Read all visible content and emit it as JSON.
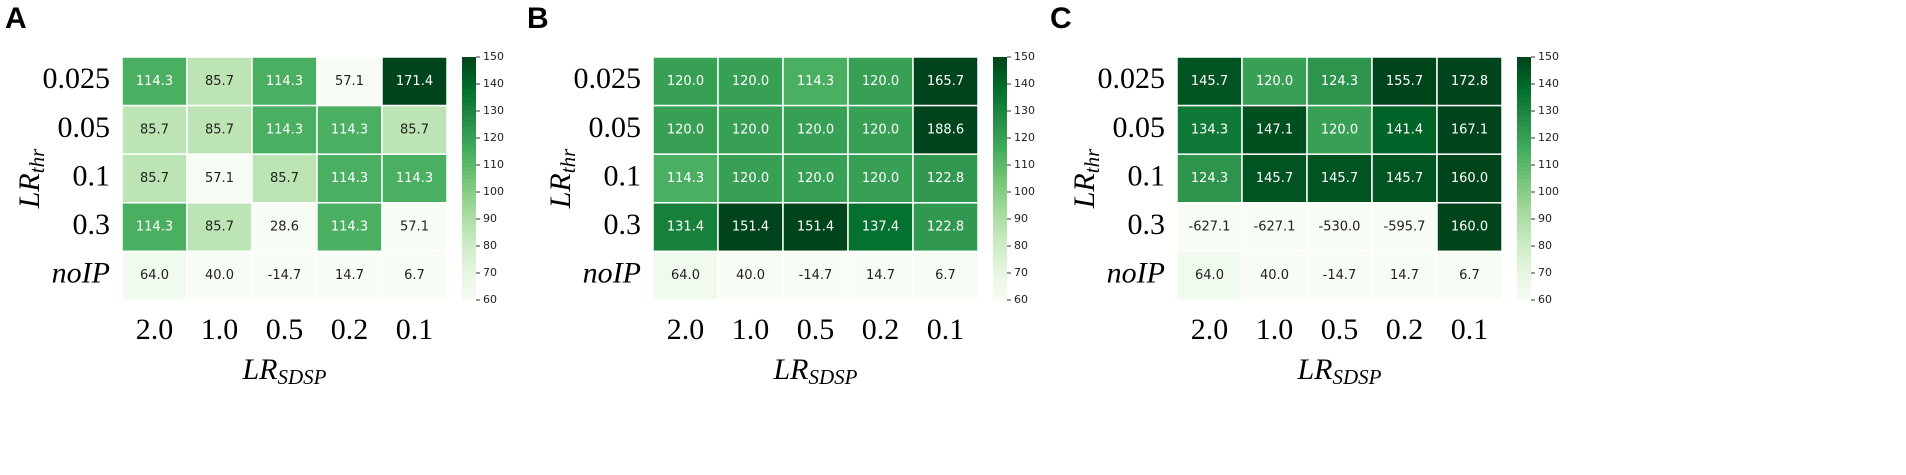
{
  "chart_data": [
    {
      "type": "heatmap",
      "panel": "A",
      "x": [
        "2.0",
        "1.0",
        "0.5",
        "0.2",
        "0.1"
      ],
      "y": [
        "0.025",
        "0.05",
        "0.1",
        "0.3",
        "noIP"
      ],
      "xlabel": "LR",
      "xlabel_sub": "SDSP",
      "ylabel": "LR",
      "ylabel_sub": "thr",
      "values": [
        [
          114.3,
          85.7,
          114.3,
          57.1,
          171.4
        ],
        [
          85.7,
          85.7,
          114.3,
          114.3,
          85.7
        ],
        [
          85.7,
          57.1,
          85.7,
          114.3,
          114.3
        ],
        [
          114.3,
          85.7,
          28.6,
          114.3,
          57.1
        ],
        [
          64.0,
          40.0,
          -14.7,
          14.7,
          6.7
        ]
      ],
      "value_labels": [
        [
          "114.3",
          "85.7",
          "114.3",
          "57.1",
          "171.4"
        ],
        [
          "85.7",
          "85.7",
          "114.3",
          "114.3",
          "85.7"
        ],
        [
          "85.7",
          "57.1",
          "85.7",
          "114.3",
          "114.3"
        ],
        [
          "114.3",
          "85.7",
          "28.6",
          "114.3",
          "57.1"
        ],
        [
          "64.0",
          "40.0",
          "-14.7",
          "14.7",
          "6.7"
        ]
      ],
      "colormap": "Greens",
      "clim": [
        60,
        150
      ],
      "cticks": [
        60,
        70,
        80,
        90,
        100,
        110,
        120,
        130,
        140,
        150
      ]
    },
    {
      "type": "heatmap",
      "panel": "B",
      "x": [
        "2.0",
        "1.0",
        "0.5",
        "0.2",
        "0.1"
      ],
      "y": [
        "0.025",
        "0.05",
        "0.1",
        "0.3",
        "noIP"
      ],
      "xlabel": "LR",
      "xlabel_sub": "SDSP",
      "ylabel": "LR",
      "ylabel_sub": "thr",
      "values": [
        [
          120.0,
          120.0,
          114.3,
          120.0,
          165.7
        ],
        [
          120.0,
          120.0,
          120.0,
          120.0,
          188.6
        ],
        [
          114.3,
          120.0,
          120.0,
          120.0,
          122.8
        ],
        [
          131.4,
          151.4,
          151.4,
          137.4,
          122.8
        ],
        [
          64.0,
          40.0,
          -14.7,
          14.7,
          6.7
        ]
      ],
      "value_labels": [
        [
          "120.0",
          "120.0",
          "114.3",
          "120.0",
          "165.7"
        ],
        [
          "120.0",
          "120.0",
          "120.0",
          "120.0",
          "188.6"
        ],
        [
          "114.3",
          "120.0",
          "120.0",
          "120.0",
          "122.8"
        ],
        [
          "131.4",
          "151.4",
          "151.4",
          "137.4",
          "122.8"
        ],
        [
          "64.0",
          "40.0",
          "-14.7",
          "14.7",
          "6.7"
        ]
      ],
      "colormap": "Greens",
      "clim": [
        60,
        150
      ],
      "cticks": [
        60,
        70,
        80,
        90,
        100,
        110,
        120,
        130,
        140,
        150
      ]
    },
    {
      "type": "heatmap",
      "panel": "C",
      "x": [
        "2.0",
        "1.0",
        "0.5",
        "0.2",
        "0.1"
      ],
      "y": [
        "0.025",
        "0.05",
        "0.1",
        "0.3",
        "noIP"
      ],
      "xlabel": "LR",
      "xlabel_sub": "SDSP",
      "ylabel": "LR",
      "ylabel_sub": "thr",
      "values": [
        [
          145.7,
          120.0,
          124.3,
          155.7,
          172.8
        ],
        [
          134.3,
          147.1,
          120.0,
          141.4,
          167.1
        ],
        [
          124.3,
          145.7,
          145.7,
          145.7,
          160.0
        ],
        [
          -627.1,
          -627.1,
          -530.0,
          -595.7,
          160.0
        ],
        [
          64.0,
          40.0,
          -14.7,
          14.7,
          6.7
        ]
      ],
      "value_labels": [
        [
          "145.7",
          "120.0",
          "124.3",
          "155.7",
          "172.8"
        ],
        [
          "134.3",
          "147.1",
          "120.0",
          "141.4",
          "167.1"
        ],
        [
          "124.3",
          "145.7",
          "145.7",
          "145.7",
          "160.0"
        ],
        [
          "-627.1",
          "-627.1",
          "-530.0",
          "-595.7",
          "160.0"
        ],
        [
          "64.0",
          "40.0",
          "-14.7",
          "14.7",
          "6.7"
        ]
      ],
      "colormap": "Greens",
      "clim": [
        60,
        150
      ],
      "cticks": [
        60,
        70,
        80,
        90,
        100,
        110,
        120,
        130,
        140,
        150
      ]
    }
  ]
}
